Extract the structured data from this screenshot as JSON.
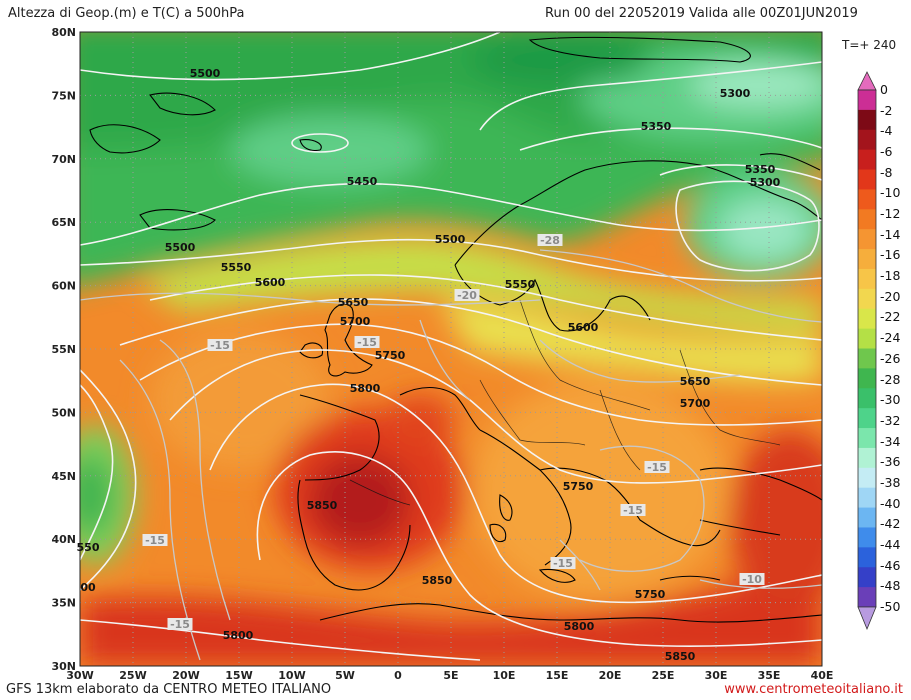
{
  "header": {
    "title": "Altezza di Geop.(m) e T(C) a 500hPa",
    "run": "Run 00 del 22052019  Valida alle 00Z01JUN2019",
    "timestep": "T=+ 240"
  },
  "footer": {
    "left": "GFS 13km elaborato da CENTRO METEO ITALIANO",
    "right": "www.centrometeoitaliano.it"
  },
  "axes": {
    "lat_labels": [
      "80N",
      "75N",
      "70N",
      "65N",
      "60N",
      "55N",
      "50N",
      "45N",
      "40N",
      "35N",
      "30N"
    ],
    "lon_labels": [
      "30W",
      "25W",
      "20W",
      "15W",
      "10W",
      "5W",
      "0",
      "5E",
      "10E",
      "15E",
      "20E",
      "25E",
      "30E",
      "35E",
      "40E"
    ]
  },
  "colorbar": {
    "labels": [
      "0",
      "-2",
      "-4",
      "-6",
      "-8",
      "-10",
      "-12",
      "-14",
      "-16",
      "-18",
      "-20",
      "-22",
      "-24",
      "-26",
      "-28",
      "-30",
      "-32",
      "-34",
      "-36",
      "-38",
      "-40",
      "-42",
      "-44",
      "-46",
      "-48",
      "-50"
    ],
    "colors": [
      "#cc2e95",
      "#7d0a16",
      "#a3141c",
      "#c81f1d",
      "#e2371a",
      "#ee5a1c",
      "#f27a22",
      "#f59532",
      "#f6ae3c",
      "#f7c548",
      "#f2d74f",
      "#d9e64a",
      "#b4e046",
      "#6fc74d",
      "#3fb64f",
      "#3ac06a",
      "#4ed38a",
      "#7be6ac",
      "#b0f2d4",
      "#c4ecf4",
      "#9fd6f5",
      "#6cb6f2",
      "#3f8ceb",
      "#2b62dc",
      "#3540c8",
      "#6a3fb8"
    ],
    "tip_colors": {
      "top": "#e46bbd",
      "bottom": "#b89be0"
    }
  },
  "contour_labels": [
    {
      "text": "5500"
    },
    {
      "text": "5300"
    },
    {
      "text": "5350"
    },
    {
      "text": "5350"
    },
    {
      "text": "5300"
    },
    {
      "text": "5450"
    },
    {
      "text": "5500"
    },
    {
      "text": "5500"
    },
    {
      "text": "5550"
    },
    {
      "text": "5600"
    },
    {
      "text": "5550"
    },
    {
      "text": "5650"
    },
    {
      "text": "5700"
    },
    {
      "text": "5600"
    },
    {
      "text": "5750"
    },
    {
      "text": "5800"
    },
    {
      "text": "5650"
    },
    {
      "text": "5700"
    },
    {
      "text": "5750"
    },
    {
      "text": "5850"
    },
    {
      "text": "5850"
    },
    {
      "text": "5750"
    },
    {
      "text": "5800"
    },
    {
      "text": "5800"
    },
    {
      "text": "5850"
    },
    {
      "text": "-28"
    },
    {
      "text": "-20"
    },
    {
      "text": "-15"
    },
    {
      "text": "-15"
    },
    {
      "text": "-15"
    },
    {
      "text": "-15"
    },
    {
      "text": "-15"
    },
    {
      "text": "-15"
    },
    {
      "text": "-15"
    },
    {
      "text": "-10"
    },
    {
      "text": "550"
    },
    {
      "text": "00"
    }
  ]
}
